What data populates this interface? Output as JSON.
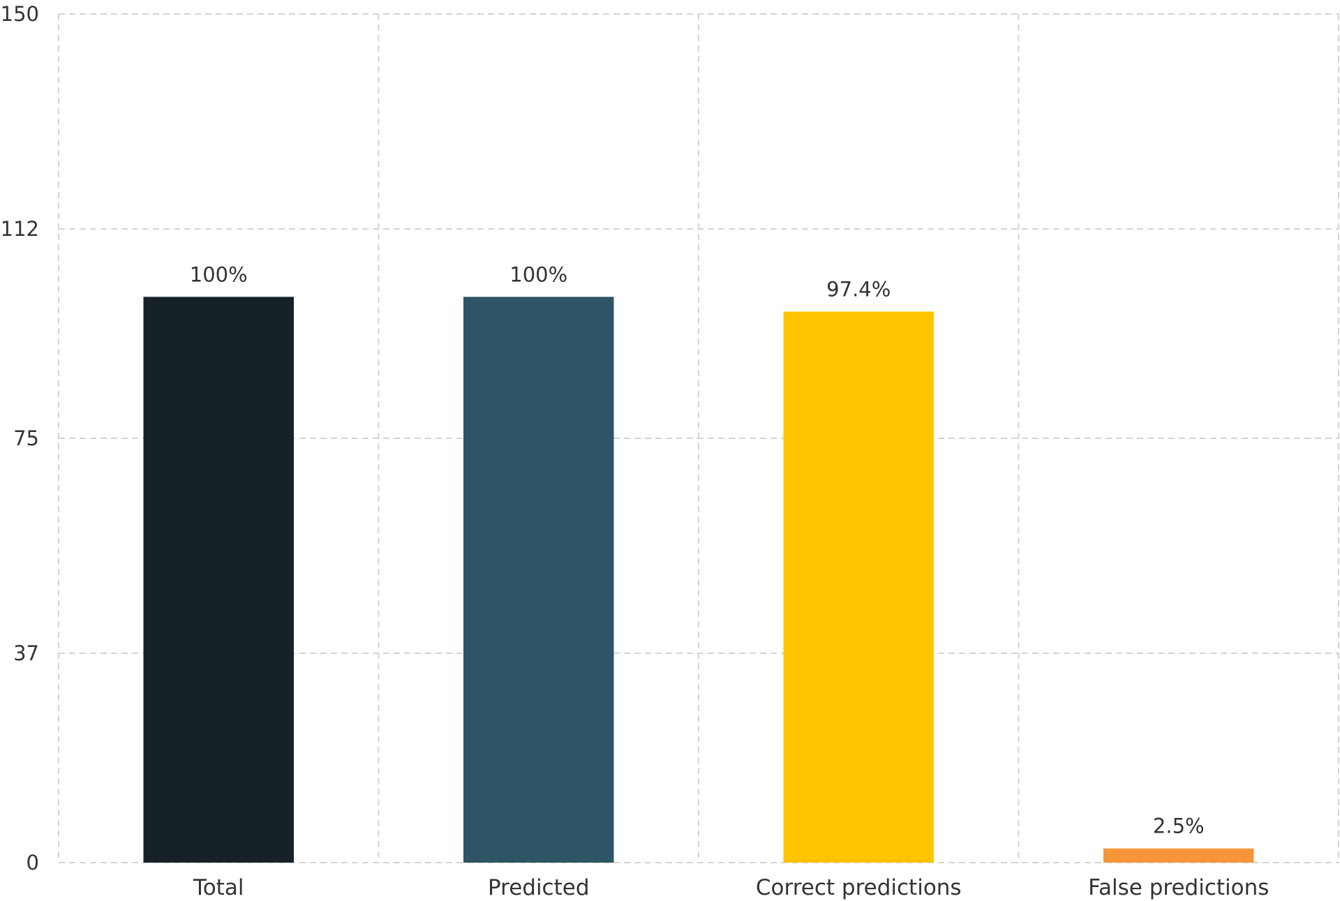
{
  "chart_data": {
    "type": "bar",
    "categories": [
      "Total",
      "Predicted",
      "Correct predictions",
      "False predictions"
    ],
    "values": [
      100,
      100,
      97.4,
      2.5
    ],
    "data_labels": [
      "100%",
      "100%",
      "97.4%",
      "2.5%"
    ],
    "colors": [
      "#162228",
      "#2e5466",
      "#ffc300",
      "#f7953a"
    ],
    "ylim": [
      0,
      150
    ],
    "yticks": [
      0,
      37,
      75,
      112,
      150
    ],
    "grid": true,
    "title": "",
    "xlabel": "",
    "ylabel": ""
  }
}
